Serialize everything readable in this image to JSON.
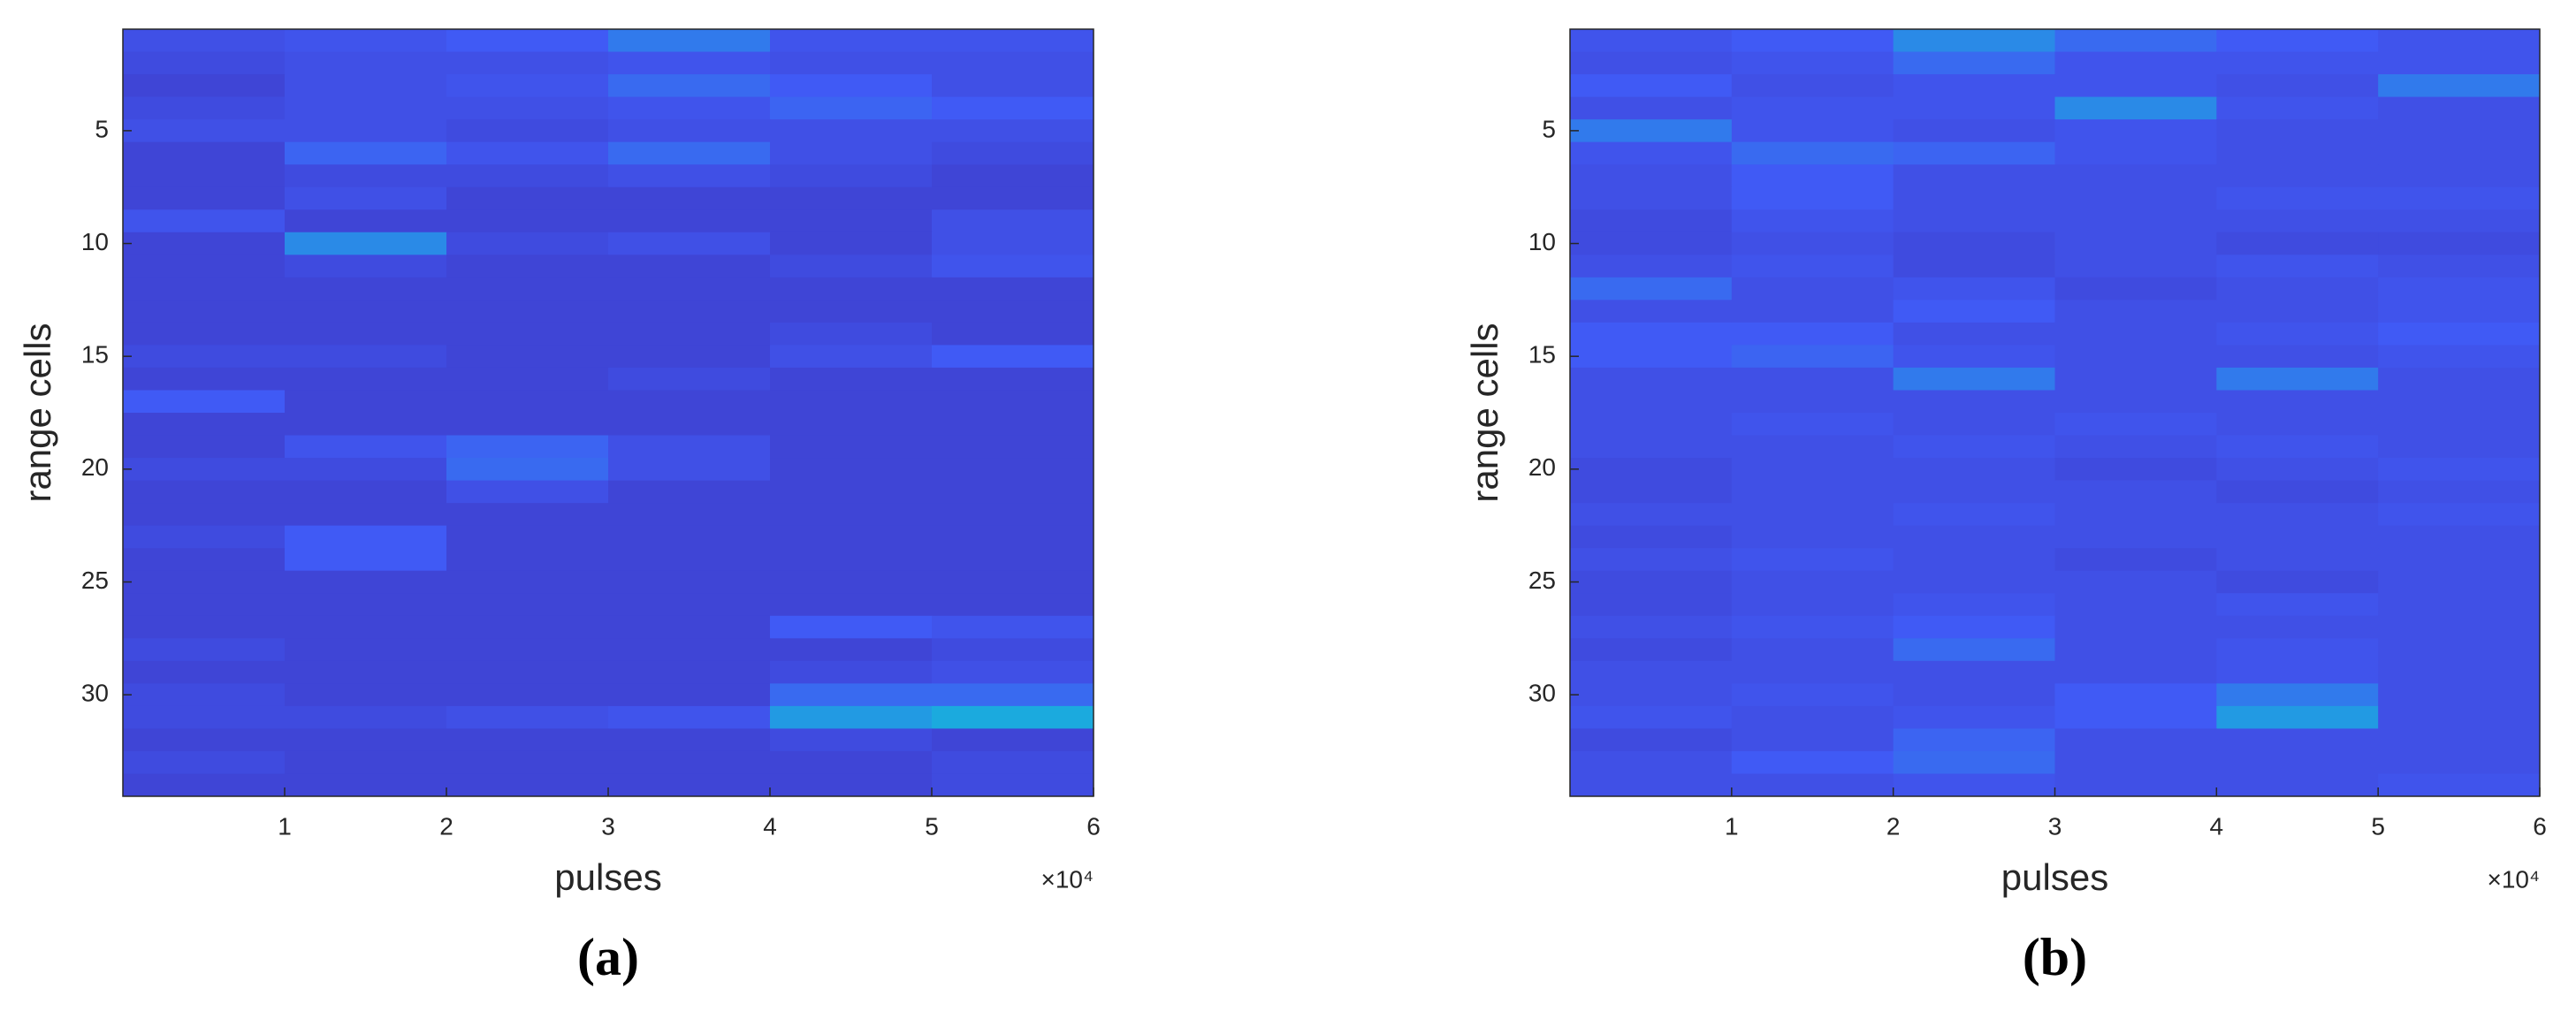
{
  "chart_data": [
    {
      "type": "heatmap",
      "caption": "(a)",
      "xlabel": "pulses",
      "ylabel": "range cells",
      "x_multiplier": "×10⁴",
      "colormap": "parula",
      "xlim": [
        0,
        60000
      ],
      "ylim": [
        0.5,
        34.5
      ],
      "y_reversed": true,
      "xticks": [
        {
          "value": 10000,
          "label": "1"
        },
        {
          "value": 20000,
          "label": "2"
        },
        {
          "value": 30000,
          "label": "3"
        },
        {
          "value": 40000,
          "label": "4"
        },
        {
          "value": 50000,
          "label": "5"
        },
        {
          "value": 60000,
          "label": "6"
        }
      ],
      "yticks": [
        5,
        10,
        15,
        20,
        25,
        30
      ],
      "x_bins": [
        0,
        10000,
        20000,
        30000,
        40000,
        50000,
        60000
      ],
      "y": [
        1,
        2,
        3,
        4,
        5,
        6,
        7,
        8,
        9,
        10,
        11,
        12,
        13,
        14,
        15,
        16,
        17,
        18,
        19,
        20,
        21,
        22,
        23,
        24,
        25,
        26,
        27,
        28,
        29,
        30,
        31,
        32,
        33,
        34
      ],
      "z": [
        [
          0.2,
          0.22,
          0.25,
          0.35,
          0.22,
          0.22
        ],
        [
          0.18,
          0.2,
          0.2,
          0.22,
          0.2,
          0.2
        ],
        [
          0.15,
          0.2,
          0.22,
          0.3,
          0.25,
          0.2
        ],
        [
          0.18,
          0.2,
          0.2,
          0.22,
          0.28,
          0.25
        ],
        [
          0.2,
          0.2,
          0.18,
          0.2,
          0.2,
          0.2
        ],
        [
          0.15,
          0.28,
          0.22,
          0.3,
          0.2,
          0.18
        ],
        [
          0.15,
          0.18,
          0.18,
          0.2,
          0.18,
          0.15
        ],
        [
          0.15,
          0.2,
          0.15,
          0.15,
          0.15,
          0.15
        ],
        [
          0.22,
          0.15,
          0.15,
          0.15,
          0.15,
          0.2
        ],
        [
          0.15,
          0.4,
          0.18,
          0.2,
          0.15,
          0.2
        ],
        [
          0.15,
          0.18,
          0.15,
          0.15,
          0.18,
          0.22
        ],
        [
          0.15,
          0.15,
          0.15,
          0.15,
          0.15,
          0.15
        ],
        [
          0.15,
          0.15,
          0.15,
          0.15,
          0.15,
          0.15
        ],
        [
          0.15,
          0.15,
          0.15,
          0.15,
          0.18,
          0.15
        ],
        [
          0.18,
          0.18,
          0.15,
          0.15,
          0.2,
          0.25
        ],
        [
          0.15,
          0.15,
          0.15,
          0.18,
          0.15,
          0.15
        ],
        [
          0.25,
          0.15,
          0.15,
          0.15,
          0.15,
          0.15
        ],
        [
          0.15,
          0.15,
          0.15,
          0.15,
          0.15,
          0.15
        ],
        [
          0.15,
          0.22,
          0.28,
          0.2,
          0.15,
          0.15
        ],
        [
          0.18,
          0.18,
          0.3,
          0.2,
          0.15,
          0.15
        ],
        [
          0.15,
          0.15,
          0.2,
          0.15,
          0.15,
          0.15
        ],
        [
          0.15,
          0.15,
          0.15,
          0.15,
          0.15,
          0.15
        ],
        [
          0.18,
          0.25,
          0.15,
          0.15,
          0.15,
          0.15
        ],
        [
          0.15,
          0.25,
          0.15,
          0.15,
          0.15,
          0.15
        ],
        [
          0.15,
          0.15,
          0.15,
          0.15,
          0.15,
          0.15
        ],
        [
          0.15,
          0.15,
          0.15,
          0.15,
          0.15,
          0.15
        ],
        [
          0.15,
          0.15,
          0.15,
          0.15,
          0.25,
          0.22
        ],
        [
          0.18,
          0.15,
          0.15,
          0.15,
          0.15,
          0.18
        ],
        [
          0.15,
          0.15,
          0.15,
          0.15,
          0.18,
          0.2
        ],
        [
          0.18,
          0.15,
          0.15,
          0.15,
          0.3,
          0.3
        ],
        [
          0.18,
          0.18,
          0.2,
          0.22,
          0.45,
          0.5
        ],
        [
          0.15,
          0.15,
          0.15,
          0.15,
          0.18,
          0.15
        ],
        [
          0.18,
          0.15,
          0.15,
          0.15,
          0.15,
          0.18
        ],
        [
          0.15,
          0.15,
          0.15,
          0.15,
          0.15,
          0.18
        ]
      ]
    },
    {
      "type": "heatmap",
      "caption": "(b)",
      "xlabel": "pulses",
      "ylabel": "range cells",
      "x_multiplier": "×10⁴",
      "colormap": "parula",
      "xlim": [
        0,
        60000
      ],
      "ylim": [
        0.5,
        34.5
      ],
      "y_reversed": true,
      "xticks": [
        {
          "value": 10000,
          "label": "1"
        },
        {
          "value": 20000,
          "label": "2"
        },
        {
          "value": 30000,
          "label": "3"
        },
        {
          "value": 40000,
          "label": "4"
        },
        {
          "value": 50000,
          "label": "5"
        },
        {
          "value": 60000,
          "label": "6"
        }
      ],
      "yticks": [
        5,
        10,
        15,
        20,
        25,
        30
      ],
      "x_bins": [
        0,
        10000,
        20000,
        30000,
        40000,
        50000,
        60000
      ],
      "y": [
        1,
        2,
        3,
        4,
        5,
        6,
        7,
        8,
        9,
        10,
        11,
        12,
        13,
        14,
        15,
        16,
        17,
        18,
        19,
        20,
        21,
        22,
        23,
        24,
        25,
        26,
        27,
        28,
        29,
        30,
        31,
        32,
        33,
        34
      ],
      "z": [
        [
          0.22,
          0.25,
          0.4,
          0.3,
          0.25,
          0.22
        ],
        [
          0.2,
          0.22,
          0.3,
          0.22,
          0.22,
          0.22
        ],
        [
          0.25,
          0.2,
          0.22,
          0.22,
          0.2,
          0.35
        ],
        [
          0.2,
          0.22,
          0.22,
          0.4,
          0.22,
          0.2
        ],
        [
          0.35,
          0.22,
          0.2,
          0.22,
          0.2,
          0.2
        ],
        [
          0.22,
          0.3,
          0.28,
          0.22,
          0.2,
          0.2
        ],
        [
          0.2,
          0.25,
          0.2,
          0.2,
          0.2,
          0.2
        ],
        [
          0.2,
          0.25,
          0.2,
          0.2,
          0.22,
          0.22
        ],
        [
          0.18,
          0.22,
          0.2,
          0.2,
          0.2,
          0.2
        ],
        [
          0.18,
          0.2,
          0.18,
          0.2,
          0.18,
          0.18
        ],
        [
          0.2,
          0.22,
          0.18,
          0.2,
          0.22,
          0.2
        ],
        [
          0.3,
          0.2,
          0.22,
          0.18,
          0.2,
          0.22
        ],
        [
          0.2,
          0.2,
          0.25,
          0.2,
          0.2,
          0.22
        ],
        [
          0.25,
          0.25,
          0.2,
          0.2,
          0.22,
          0.25
        ],
        [
          0.25,
          0.28,
          0.22,
          0.2,
          0.2,
          0.22
        ],
        [
          0.2,
          0.2,
          0.35,
          0.2,
          0.35,
          0.2
        ],
        [
          0.2,
          0.2,
          0.2,
          0.2,
          0.2,
          0.2
        ],
        [
          0.2,
          0.22,
          0.2,
          0.22,
          0.2,
          0.2
        ],
        [
          0.2,
          0.2,
          0.22,
          0.2,
          0.22,
          0.2
        ],
        [
          0.18,
          0.2,
          0.2,
          0.18,
          0.2,
          0.22
        ],
        [
          0.18,
          0.2,
          0.2,
          0.2,
          0.18,
          0.2
        ],
        [
          0.2,
          0.2,
          0.22,
          0.2,
          0.2,
          0.22
        ],
        [
          0.18,
          0.2,
          0.2,
          0.2,
          0.2,
          0.2
        ],
        [
          0.2,
          0.22,
          0.2,
          0.18,
          0.2,
          0.2
        ],
        [
          0.18,
          0.2,
          0.2,
          0.2,
          0.18,
          0.2
        ],
        [
          0.18,
          0.2,
          0.22,
          0.2,
          0.22,
          0.2
        ],
        [
          0.2,
          0.22,
          0.25,
          0.2,
          0.2,
          0.2
        ],
        [
          0.18,
          0.2,
          0.3,
          0.2,
          0.22,
          0.2
        ],
        [
          0.2,
          0.2,
          0.2,
          0.2,
          0.22,
          0.2
        ],
        [
          0.2,
          0.22,
          0.2,
          0.25,
          0.35,
          0.2
        ],
        [
          0.22,
          0.2,
          0.22,
          0.25,
          0.45,
          0.2
        ],
        [
          0.18,
          0.2,
          0.28,
          0.2,
          0.2,
          0.2
        ],
        [
          0.2,
          0.25,
          0.3,
          0.2,
          0.2,
          0.2
        ],
        [
          0.2,
          0.2,
          0.22,
          0.2,
          0.2,
          0.22
        ]
      ]
    }
  ]
}
